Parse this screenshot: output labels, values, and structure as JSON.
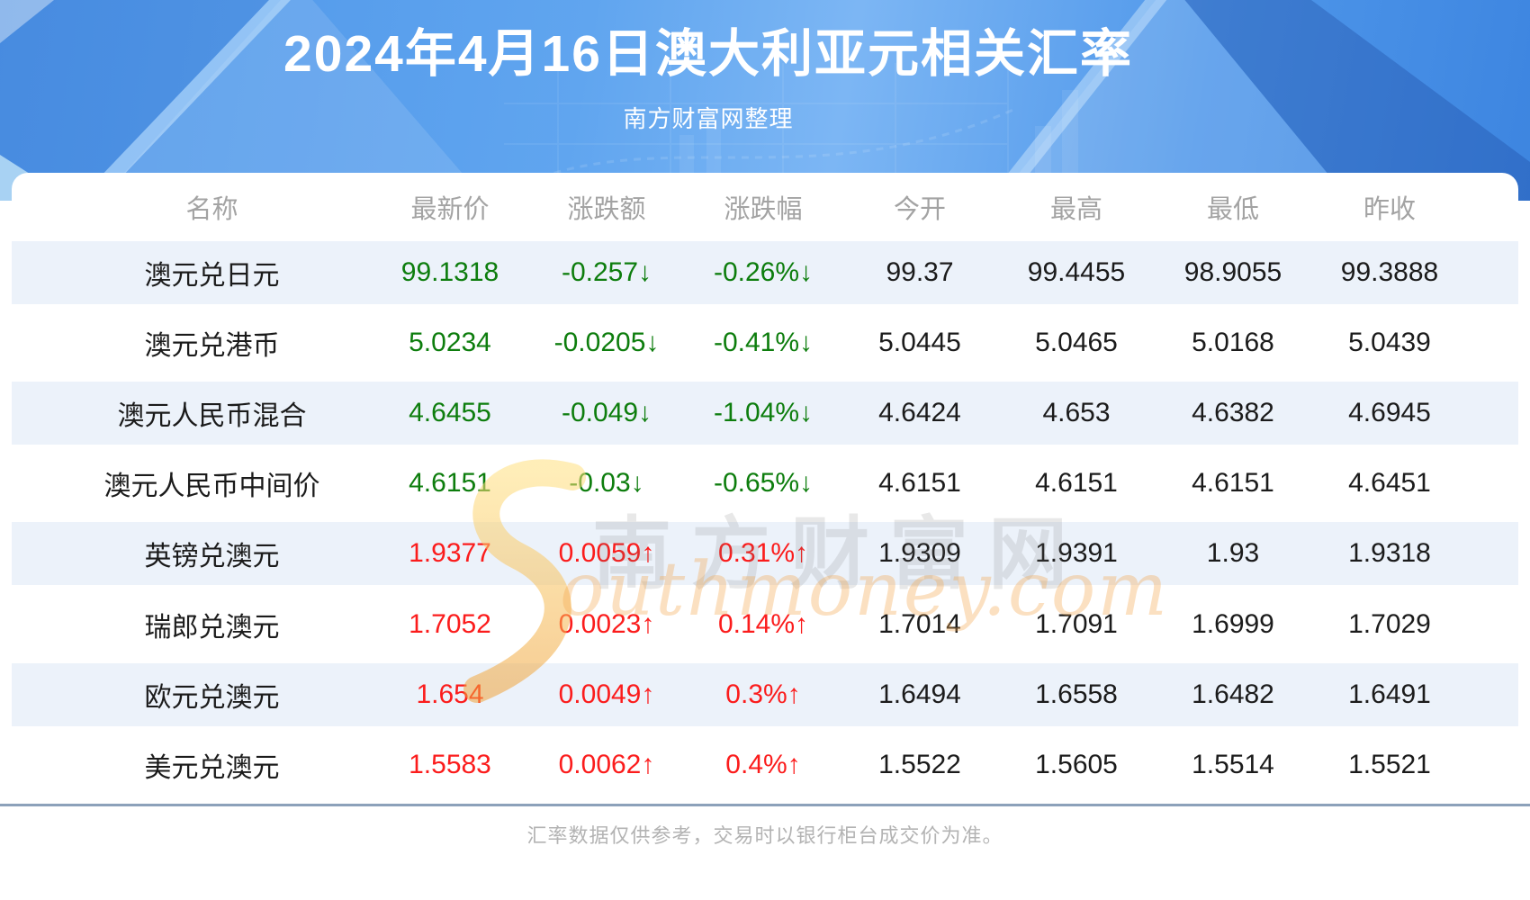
{
  "banner": {
    "title": "2024年4月16日澳大利亚元相关汇率",
    "subtitle": "南方财富网整理"
  },
  "chart_data": {
    "type": "table",
    "title": "2024年4月16日澳大利亚元相关汇率",
    "columns": [
      "名称",
      "最新价",
      "涨跌额",
      "涨跌幅",
      "今开",
      "最高",
      "最低",
      "昨收"
    ],
    "rows": [
      {
        "name": "澳元兑日元",
        "latest": "99.1318",
        "change": "-0.257↓",
        "change_pct": "-0.26%↓",
        "open": "99.37",
        "high": "99.4455",
        "low": "98.9055",
        "prev_close": "99.3888",
        "trend": "down"
      },
      {
        "name": "澳元兑港币",
        "latest": "5.0234",
        "change": "-0.0205↓",
        "change_pct": "-0.41%↓",
        "open": "5.0445",
        "high": "5.0465",
        "low": "5.0168",
        "prev_close": "5.0439",
        "trend": "down"
      },
      {
        "name": "澳元人民币混合",
        "latest": "4.6455",
        "change": "-0.049↓",
        "change_pct": "-1.04%↓",
        "open": "4.6424",
        "high": "4.653",
        "low": "4.6382",
        "prev_close": "4.6945",
        "trend": "down"
      },
      {
        "name": "澳元人民币中间价",
        "latest": "4.6151",
        "change": "-0.03↓",
        "change_pct": "-0.65%↓",
        "open": "4.6151",
        "high": "4.6151",
        "low": "4.6151",
        "prev_close": "4.6451",
        "trend": "down"
      },
      {
        "name": "英镑兑澳元",
        "latest": "1.9377",
        "change": "0.0059↑",
        "change_pct": "0.31%↑",
        "open": "1.9309",
        "high": "1.9391",
        "low": "1.93",
        "prev_close": "1.9318",
        "trend": "up"
      },
      {
        "name": "瑞郎兑澳元",
        "latest": "1.7052",
        "change": "0.0023↑",
        "change_pct": "0.14%↑",
        "open": "1.7014",
        "high": "1.7091",
        "low": "1.6999",
        "prev_close": "1.7029",
        "trend": "up"
      },
      {
        "name": "欧元兑澳元",
        "latest": "1.654",
        "change": "0.0049↑",
        "change_pct": "0.3%↑",
        "open": "1.6494",
        "high": "1.6558",
        "low": "1.6482",
        "prev_close": "1.6491",
        "trend": "up"
      },
      {
        "name": "美元兑澳元",
        "latest": "1.5583",
        "change": "0.0062↑",
        "change_pct": "0.4%↑",
        "open": "1.5522",
        "high": "1.5605",
        "low": "1.5514",
        "prev_close": "1.5521",
        "trend": "up"
      }
    ]
  },
  "watermark": {
    "cn": "南方财富网",
    "en": "Southmoney.com"
  },
  "footer": {
    "note": "汇率数据仅供参考，交易时以银行柜台成交价为准。"
  },
  "colors": {
    "up": "#fb1c1c",
    "down": "#0d7d0d",
    "stripe": "#ecf2fa",
    "divider": "#8ca1ba",
    "banner_blue": "#4c94e8"
  }
}
